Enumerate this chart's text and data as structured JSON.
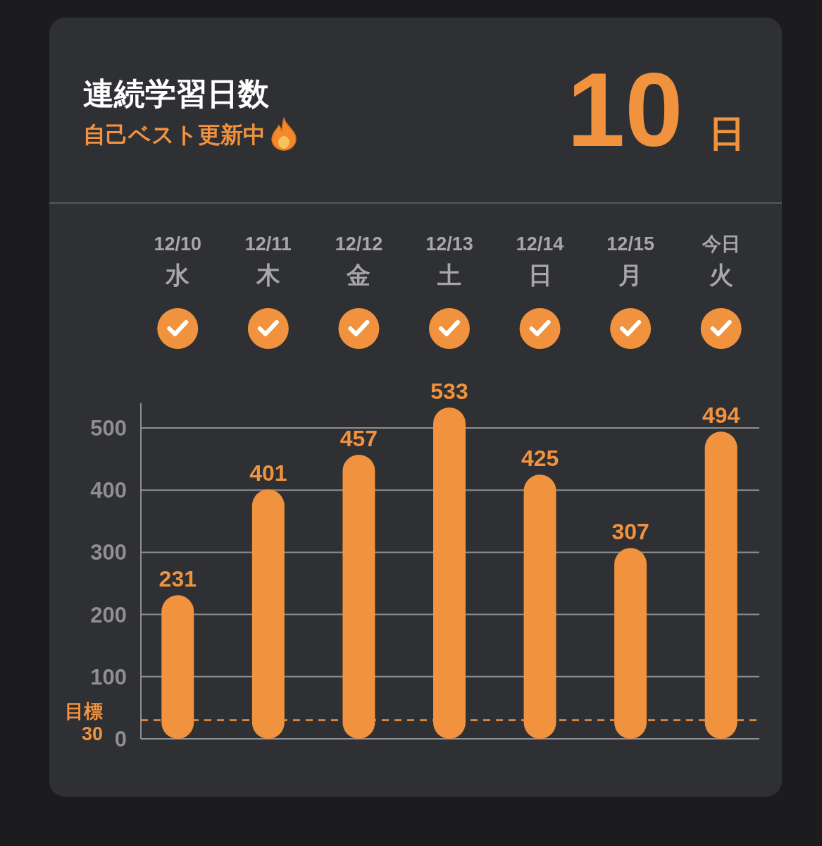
{
  "chart_data": {
    "type": "bar",
    "title": "連続学習日数",
    "subtitle": "自己ベスト更新中",
    "annotations": [
      "10 日"
    ],
    "categories": [
      "12/10\n水",
      "12/11\n木",
      "12/12\n金",
      "12/13\n土",
      "12/14\n日",
      "12/15\n月",
      "今日火"
    ],
    "values": [
      231,
      401,
      457,
      533,
      425,
      307,
      494
    ],
    "color": "#f0923e",
    "ylim": [
      0,
      540
    ],
    "yticks": [
      0,
      100,
      200,
      300,
      400,
      500
    ],
    "grid": "y",
    "data_labels": true,
    "ref_lines": [
      {
        "axis": "y",
        "value": 30,
        "label": "目標\n30",
        "color": "#f0923e",
        "line_style": "dashed"
      }
    ]
  }
}
